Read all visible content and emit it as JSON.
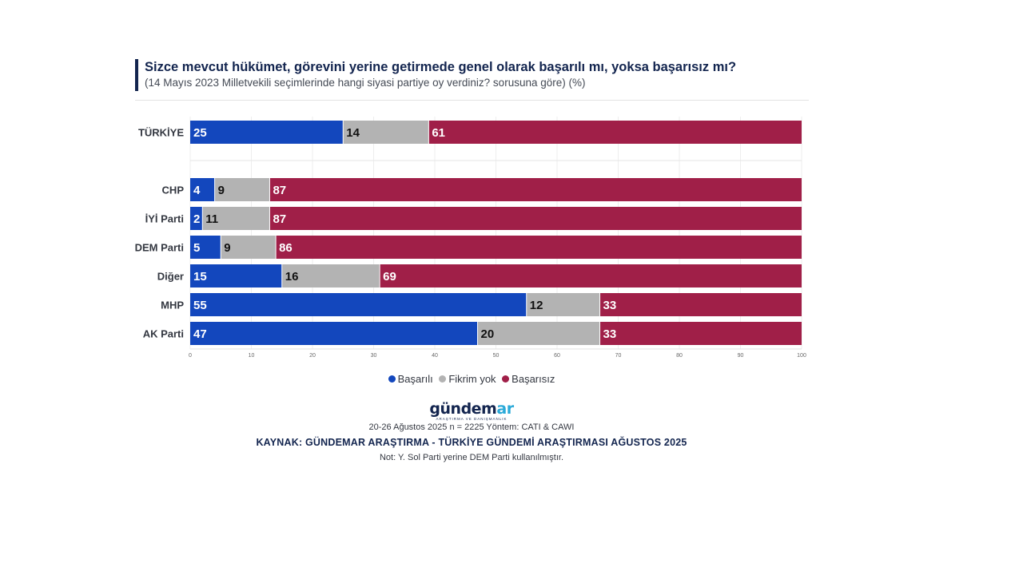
{
  "header": {
    "title": "Sizce mevcut hükümet, görevini yerine getirmede genel olarak başarılı mı, yoksa başarısız mı?",
    "subtitle": "(14 Mayıs 2023 Milletvekili seçimlerinde hangi siyasi partiye oy verdiniz? sorusuna göre) (%)"
  },
  "chart_data": {
    "type": "bar",
    "orientation": "horizontal",
    "stacked": true,
    "title": "Sizce mevcut hükümet, görevini yerine getirmede genel olarak başarılı mı, yoksa başarısız mı?",
    "categories": [
      "TÜRKİYE",
      "CHP",
      "İYİ Parti",
      "DEM Parti",
      "Diğer",
      "MHP",
      "AK Parti"
    ],
    "series": [
      {
        "name": "Başarılı",
        "color": "#1347bd",
        "label_color": "#ffffff",
        "values": [
          25,
          4,
          2,
          5,
          15,
          55,
          47
        ]
      },
      {
        "name": "Fikrim yok",
        "color": "#b3b3b3",
        "label_color": "#111111",
        "values": [
          14,
          9,
          11,
          9,
          16,
          12,
          20
        ]
      },
      {
        "name": "Başarısız",
        "color": "#a01f48",
        "label_color": "#ffffff",
        "values": [
          61,
          87,
          87,
          86,
          69,
          33,
          33
        ]
      }
    ],
    "xlim": [
      0,
      100
    ],
    "xticks": [
      0,
      10,
      20,
      30,
      40,
      50,
      60,
      70,
      80,
      90,
      100
    ],
    "legend_position": "bottom-center"
  },
  "footer": {
    "logo_main": "gündem",
    "logo_accent": "ar",
    "logo_tagline": "ARAŞTIRMA VE DANIŞMANLIK",
    "method": "20-26 Ağustos 2025 n = 2225 Yöntem: CATI & CAWI",
    "source": "KAYNAK: GÜNDEMAR ARAŞTIRMA - TÜRKİYE GÜNDEMİ ARAŞTIRMASI AĞUSTOS 2025",
    "note": "Not: Y. Sol Parti yerine DEM Parti kullanılmıştır."
  }
}
